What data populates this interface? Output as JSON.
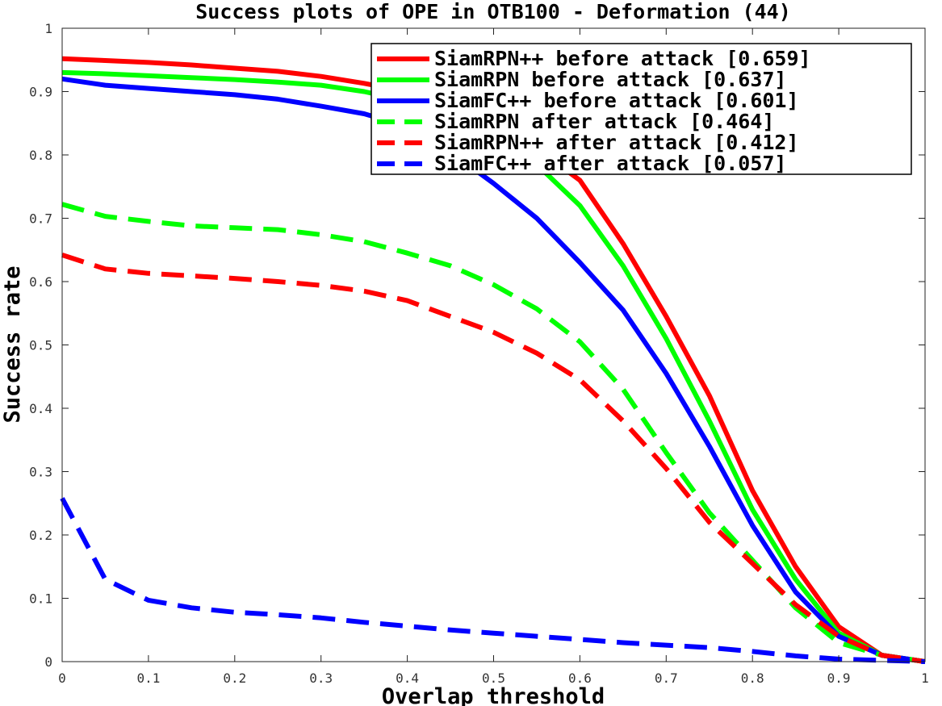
{
  "chart_data": {
    "type": "line",
    "title": "Success plots of OPE in OTB100 - Deformation (44)",
    "xlabel": "Overlap threshold",
    "ylabel": "Success rate",
    "xlim": [
      0,
      1
    ],
    "ylim": [
      0,
      1
    ],
    "x_ticks": [
      "0",
      "0.1",
      "0.2",
      "0.3",
      "0.4",
      "0.5",
      "0.6",
      "0.7",
      "0.8",
      "0.9",
      "1"
    ],
    "y_ticks": [
      "0",
      "0.1",
      "0.2",
      "0.3",
      "0.4",
      "0.5",
      "0.6",
      "0.7",
      "0.8",
      "0.9",
      "1"
    ],
    "grid": false,
    "legend_position": "top-right",
    "x": [
      0,
      0.05,
      0.1,
      0.15,
      0.2,
      0.25,
      0.3,
      0.35,
      0.4,
      0.45,
      0.5,
      0.55,
      0.6,
      0.65,
      0.7,
      0.75,
      0.8,
      0.85,
      0.9,
      0.95,
      1
    ],
    "series": [
      {
        "name": "SiamRPN++ before attack [0.659]",
        "color": "#ff0000",
        "dash": "solid",
        "values": [
          0.952,
          0.949,
          0.946,
          0.942,
          0.937,
          0.932,
          0.924,
          0.913,
          0.9,
          0.88,
          0.85,
          0.81,
          0.76,
          0.66,
          0.545,
          0.42,
          0.27,
          0.15,
          0.055,
          0.01,
          0.0
        ]
      },
      {
        "name": "SiamRPN before attack [0.637]",
        "color": "#00ff00",
        "dash": "solid",
        "values": [
          0.93,
          0.928,
          0.925,
          0.922,
          0.919,
          0.915,
          0.91,
          0.9,
          0.885,
          0.86,
          0.83,
          0.785,
          0.72,
          0.625,
          0.51,
          0.38,
          0.24,
          0.13,
          0.045,
          0.01,
          0.0
        ]
      },
      {
        "name": "SiamFC++ before attack [0.601]",
        "color": "#0000ff",
        "dash": "solid",
        "values": [
          0.92,
          0.91,
          0.905,
          0.9,
          0.895,
          0.888,
          0.877,
          0.865,
          0.845,
          0.805,
          0.755,
          0.7,
          0.63,
          0.555,
          0.455,
          0.34,
          0.215,
          0.11,
          0.04,
          0.01,
          0.0
        ]
      },
      {
        "name": "SiamRPN after attack [0.464]",
        "color": "#00ff00",
        "dash": "dashed",
        "values": [
          0.722,
          0.703,
          0.695,
          0.688,
          0.685,
          0.682,
          0.674,
          0.663,
          0.645,
          0.625,
          0.595,
          0.557,
          0.505,
          0.43,
          0.33,
          0.235,
          0.16,
          0.085,
          0.03,
          0.01,
          0.0
        ]
      },
      {
        "name": "SiamRPN++ after attack [0.412]",
        "color": "#ff0000",
        "dash": "dashed",
        "values": [
          0.642,
          0.62,
          0.613,
          0.609,
          0.605,
          0.6,
          0.594,
          0.585,
          0.57,
          0.545,
          0.52,
          0.487,
          0.445,
          0.38,
          0.305,
          0.22,
          0.155,
          0.09,
          0.04,
          0.01,
          0.0
        ]
      },
      {
        "name": "SiamFC++ after attack [0.057]",
        "color": "#0000ff",
        "dash": "dashed",
        "values": [
          0.258,
          0.13,
          0.097,
          0.085,
          0.078,
          0.074,
          0.069,
          0.062,
          0.056,
          0.05,
          0.045,
          0.04,
          0.035,
          0.03,
          0.026,
          0.022,
          0.016,
          0.009,
          0.004,
          0.002,
          0.0
        ]
      }
    ]
  }
}
